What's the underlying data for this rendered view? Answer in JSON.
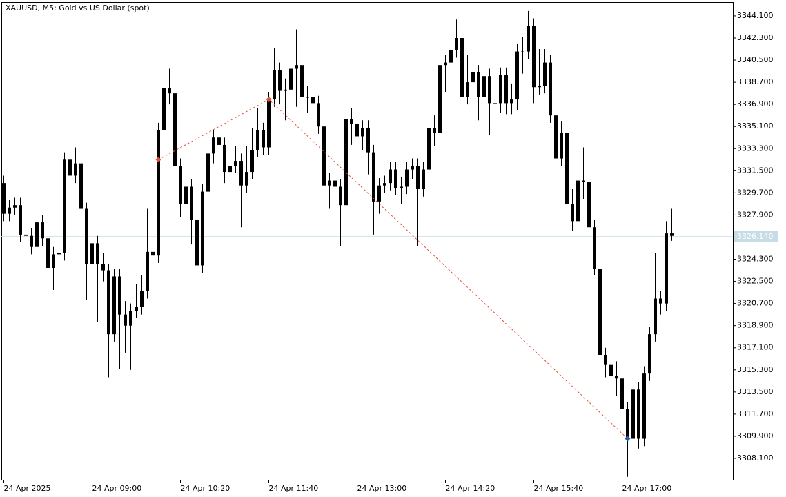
{
  "chart_data": {
    "type": "candlestick",
    "title": "XAUUSD, M5:  Gold vs US Dollar (spot)",
    "color": "#000000",
    "categories": [
      "24 Apr 2025",
      null,
      null,
      null,
      null,
      null,
      null,
      null,
      null,
      null,
      null,
      null,
      null,
      null,
      null,
      null,
      "24 Apr 09:00",
      null,
      null,
      null,
      null,
      null,
      null,
      null,
      null,
      null,
      null,
      null,
      null,
      null,
      null,
      null,
      "24 Apr 10:20",
      null,
      null,
      null,
      null,
      null,
      null,
      null,
      null,
      null,
      null,
      null,
      null,
      null,
      null,
      null,
      "24 Apr 11:40",
      null,
      null,
      null,
      null,
      null,
      null,
      null,
      null,
      null,
      null,
      null,
      null,
      null,
      null,
      null,
      "24 Apr 13:00",
      null,
      null,
      null,
      null,
      null,
      null,
      null,
      null,
      null,
      null,
      null,
      null,
      null,
      null,
      null,
      "24 Apr 14:20",
      null,
      null,
      null,
      null,
      null,
      null,
      null,
      null,
      null,
      null,
      null,
      null,
      null,
      null,
      null,
      "24 Apr 15:40",
      null,
      null,
      null,
      null,
      null,
      null,
      null,
      null,
      null,
      null,
      null,
      null,
      null,
      null,
      null,
      "24 Apr 17:00",
      null,
      null,
      null,
      null,
      null,
      null,
      null,
      null,
      null
    ],
    "open": [
      3330.5,
      3328.0,
      3328.5,
      3328.7,
      3326.3,
      3326.2,
      3325.3,
      3327.3,
      3326.0,
      3323.6,
      3324.7,
      3324.8,
      3332.4,
      3331.1,
      3332.1,
      3328.4,
      3323.9,
      3325.6,
      3323.9,
      3323.4,
      3318.2,
      3322.9,
      3319.8,
      3318.9,
      3320.1,
      3320.4,
      3321.7,
      3324.9,
      3324.6,
      3334.8,
      3338.2,
      3337.8,
      3331.9,
      3328.8,
      3330.2,
      3327.5,
      3323.8,
      3329.8,
      3332.9,
      3334.2,
      3333.6,
      3331.4,
      3331.9,
      3332.3,
      3330.3,
      3331.4,
      3333.2,
      3334.8,
      3333.4,
      3337.3,
      3339.7,
      3338.0,
      3338.1,
      3339.8,
      3340.1,
      3337.5,
      3337.5,
      3337.0,
      3335.1,
      3330.3,
      3330.7,
      3330.2,
      3328.7,
      3335.7,
      3335.3,
      3334.3,
      3335.0,
      3333.0,
      3329.0,
      3330.3,
      3330.5,
      3331.6,
      3330.1,
      3330.2,
      3331.6,
      3331.9,
      3330.0,
      3331.6,
      3335.0,
      3334.6,
      3340.1,
      3340.3,
      3341.3,
      3342.3,
      3337.5,
      3338.7,
      3339.5,
      3337.5,
      3339.2,
      3337.0,
      3337.0,
      3339.3,
      3337.0,
      3337.3,
      3341.2,
      3341.2,
      3343.3,
      3338.3,
      3338.4,
      3340.3,
      3336.0,
      3332.5,
      3334.6,
      3328.8,
      3327.4,
      3330.7,
      3330.6,
      3326.9,
      3323.5,
      3316.5,
      3315.7,
      3314.8,
      3314.6,
      3312.1,
      3309.7,
      3313.7,
      3309.7,
      3315.0,
      3318.2,
      3321.1,
      3320.7,
      3326.4
    ],
    "high": [
      3331.1,
      3329.1,
      3329.3,
      3329.3,
      3327.6,
      3326.8,
      3327.9,
      3327.9,
      3326.6,
      3325.3,
      3325.4,
      3333.0,
      3335.4,
      3333.4,
      3332.7,
      3328.9,
      3326.2,
      3326.2,
      3324.8,
      3323.9,
      3323.5,
      3323.5,
      3320.9,
      3320.7,
      3322.3,
      3323.0,
      3328.4,
      3327.5,
      3335.4,
      3338.8,
      3339.8,
      3338.4,
      3332.5,
      3331.5,
      3330.8,
      3328.1,
      3330.4,
      3333.5,
      3334.8,
      3334.8,
      3334.2,
      3333.6,
      3333.5,
      3332.9,
      3333.5,
      3335.0,
      3336.6,
      3335.4,
      3337.9,
      3341.5,
      3340.3,
      3339.0,
      3340.4,
      3343.0,
      3340.7,
      3338.4,
      3338.1,
      3337.6,
      3335.7,
      3331.3,
      3331.8,
      3330.8,
      3336.3,
      3336.6,
      3335.9,
      3335.6,
      3335.6,
      3333.6,
      3330.9,
      3331.1,
      3332.2,
      3332.2,
      3331.0,
      3332.2,
      3332.5,
      3332.5,
      3332.2,
      3335.6,
      3336.0,
      3340.7,
      3340.9,
      3341.9,
      3343.8,
      3342.9,
      3340.9,
      3340.1,
      3340.1,
      3339.8,
      3339.8,
      3337.6,
      3339.9,
      3339.9,
      3338.6,
      3341.8,
      3342.4,
      3344.5,
      3343.9,
      3341.4,
      3341.4,
      3340.9,
      3336.6,
      3335.5,
      3335.2,
      3330.0,
      3333.2,
      3333.4,
      3331.2,
      3327.5,
      3324.1,
      3317.1,
      3318.6,
      3316.0,
      3315.3,
      3312.7,
      3314.3,
      3314.3,
      3315.6,
      3318.8,
      3324.8,
      3321.7,
      3327.4,
      3328.4
    ],
    "low": [
      3327.4,
      3327.4,
      3327.9,
      3325.7,
      3324.6,
      3324.7,
      3324.7,
      3325.4,
      3322.7,
      3321.8,
      3320.6,
      3324.2,
      3330.5,
      3330.5,
      3327.8,
      3321.0,
      3320.0,
      3319.2,
      3322.5,
      3314.7,
      3317.6,
      3315.4,
      3316.7,
      3315.3,
      3319.5,
      3319.8,
      3321.1,
      3324.0,
      3324.0,
      3333.3,
      3336.9,
      3329.6,
      3327.7,
      3326.2,
      3325.5,
      3323.0,
      3323.2,
      3329.2,
      3332.1,
      3332.4,
      3330.5,
      3330.8,
      3331.3,
      3326.9,
      3329.7,
      3330.8,
      3332.6,
      3332.8,
      3332.8,
      3336.7,
      3336.9,
      3335.6,
      3337.5,
      3336.7,
      3336.9,
      3336.2,
      3335.6,
      3334.5,
      3329.7,
      3328.4,
      3329.1,
      3325.4,
      3328.1,
      3333.6,
      3333.0,
      3333.2,
      3331.2,
      3326.3,
      3328.0,
      3329.7,
      3329.9,
      3329.5,
      3328.8,
      3329.6,
      3330.8,
      3325.4,
      3329.4,
      3331.0,
      3333.5,
      3334.0,
      3337.9,
      3339.7,
      3340.7,
      3336.9,
      3336.9,
      3336.3,
      3335.6,
      3336.9,
      3334.4,
      3336.1,
      3336.2,
      3336.1,
      3336.1,
      3336.4,
      3339.4,
      3340.6,
      3337.0,
      3337.7,
      3337.8,
      3335.4,
      3330.0,
      3331.9,
      3327.6,
      3326.6,
      3326.8,
      3329.2,
      3324.8,
      3323.0,
      3316.0,
      3314.7,
      3313.1,
      3313.2,
      3311.4,
      3306.6,
      3308.4,
      3308.9,
      3309.1,
      3314.4,
      3317.6,
      3319.8,
      3320.1,
      3325.8
    ],
    "close": [
      3328.0,
      3328.5,
      3328.7,
      3326.3,
      3326.2,
      3325.3,
      3327.3,
      3326.0,
      3323.6,
      3324.7,
      3324.8,
      3332.4,
      3331.1,
      3332.1,
      3328.4,
      3323.9,
      3325.6,
      3323.9,
      3323.4,
      3318.2,
      3322.9,
      3319.8,
      3318.9,
      3320.1,
      3320.4,
      3321.7,
      3324.9,
      3324.6,
      3334.8,
      3338.2,
      3337.8,
      3331.9,
      3328.8,
      3330.2,
      3327.5,
      3323.8,
      3329.8,
      3332.9,
      3334.2,
      3333.6,
      3331.4,
      3331.9,
      3332.3,
      3330.3,
      3331.4,
      3333.2,
      3334.8,
      3333.4,
      3337.3,
      3339.7,
      3338.0,
      3338.1,
      3339.8,
      3340.1,
      3337.5,
      3337.5,
      3337.0,
      3335.1,
      3330.3,
      3330.7,
      3330.2,
      3328.7,
      3335.7,
      3335.3,
      3334.3,
      3335.0,
      3333.0,
      3329.0,
      3330.3,
      3330.5,
      3331.6,
      3330.1,
      3330.2,
      3331.6,
      3331.9,
      3330.0,
      3331.6,
      3335.0,
      3334.6,
      3340.1,
      3340.3,
      3341.3,
      3342.3,
      3337.5,
      3338.7,
      3339.5,
      3337.5,
      3339.2,
      3337.0,
      3337.0,
      3339.3,
      3337.0,
      3337.3,
      3341.2,
      3341.2,
      3343.3,
      3338.3,
      3338.4,
      3340.3,
      3336.0,
      3332.5,
      3334.6,
      3328.8,
      3327.4,
      3330.7,
      3330.6,
      3326.9,
      3323.5,
      3316.5,
      3315.7,
      3314.8,
      3314.6,
      3312.1,
      3309.7,
      3313.7,
      3309.7,
      3315.0,
      3318.2,
      3321.1,
      3320.7,
      3326.4,
      3326.2
    ],
    "ylim": [
      3306.36,
      3345.22
    ],
    "yticks": [
      {
        "value": 3344.1,
        "label": "3344.100"
      },
      {
        "value": 3342.3,
        "label": "3342.300"
      },
      {
        "value": 3340.5,
        "label": "3340.500"
      },
      {
        "value": 3338.7,
        "label": "3338.700"
      },
      {
        "value": 3336.9,
        "label": "3336.900"
      },
      {
        "value": 3335.1,
        "label": "3335.100"
      },
      {
        "value": 3333.3,
        "label": "3333.300"
      },
      {
        "value": 3331.5,
        "label": "3331.500"
      },
      {
        "value": 3329.7,
        "label": "3329.700"
      },
      {
        "value": 3327.9,
        "label": "3327.900"
      },
      {
        "value": 3326.1,
        "label": "3326.100"
      },
      {
        "value": 3324.3,
        "label": "3324.300"
      },
      {
        "value": 3322.5,
        "label": "3322.500"
      },
      {
        "value": 3320.7,
        "label": "3320.700"
      },
      {
        "value": 3318.9,
        "label": "3318.900"
      },
      {
        "value": 3317.1,
        "label": "3317.100"
      },
      {
        "value": 3315.3,
        "label": "3315.300"
      },
      {
        "value": 3313.5,
        "label": "3313.500"
      },
      {
        "value": 3311.7,
        "label": "3311.700"
      },
      {
        "value": 3309.9,
        "label": "3309.900"
      },
      {
        "value": 3308.1,
        "label": "3308.100"
      }
    ],
    "last_price": {
      "value": 3326.14,
      "label": "3326.140",
      "color": "#c8dce6"
    },
    "trade_line_color": "#e0533a",
    "markers": [
      {
        "index": 28,
        "price": 3332.4,
        "color": "#e0533a"
      },
      {
        "index": 48,
        "price": 3337.3,
        "color": "#e0533a"
      },
      {
        "index": 113,
        "price": 3309.7,
        "color": "#1f5fa8"
      }
    ]
  }
}
